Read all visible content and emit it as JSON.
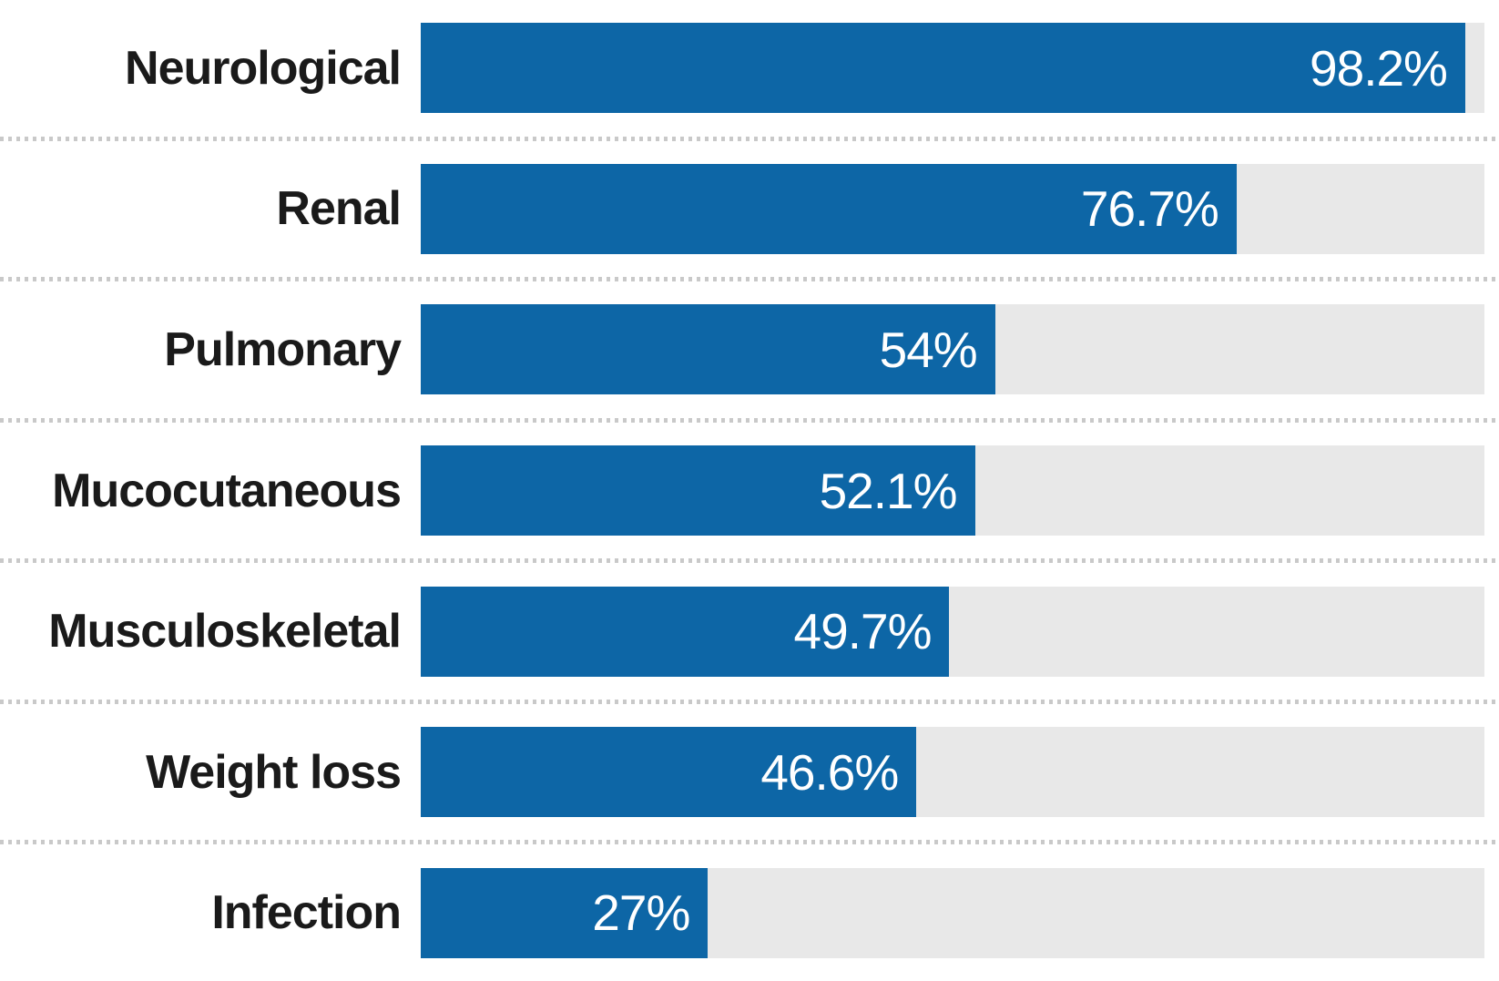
{
  "chart_data": {
    "type": "bar",
    "orientation": "horizontal",
    "title": "",
    "xlabel": "",
    "ylabel": "",
    "xlim": [
      0,
      100
    ],
    "grid": false,
    "legend": false,
    "categories": [
      "Neurological",
      "Renal",
      "Pulmonary",
      "Mucocutaneous",
      "Musculoskeletal",
      "Weight loss",
      "Infection"
    ],
    "values": [
      98.2,
      76.7,
      54,
      52.1,
      49.7,
      46.6,
      27
    ],
    "value_labels": [
      "98.2%",
      "76.7%",
      "54%",
      "52.1%",
      "49.7%",
      "46.6%",
      "27%"
    ],
    "colors": {
      "bar_fill": "#0d66a6",
      "bar_track": "#e8e8e8",
      "category_text": "#1a1a1a",
      "value_text": "#ffffff",
      "separator_dots": "#c9c9c9",
      "background": "#ffffff"
    }
  }
}
